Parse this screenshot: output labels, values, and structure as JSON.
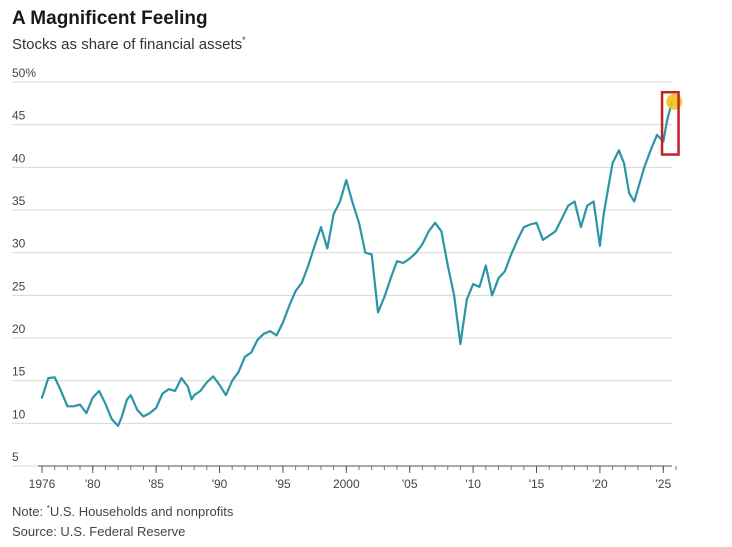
{
  "header": {
    "title": "A Magnificent Feeling",
    "subtitle": "Stocks as share of financial assets",
    "subtitle_marker": "*"
  },
  "footer": {
    "note_prefix": "Note: ",
    "note_marker": "*",
    "note_text": "U.S. Households and nonprofits",
    "source": "Source: U.S. Federal Reserve"
  },
  "colors": {
    "line": "#2a95a6",
    "grid": "#d8d8d8",
    "highlight_box": "#c0242b",
    "highlight_dot": "#f2c21b"
  },
  "chart_data": {
    "type": "line",
    "title": "A Magnificent Feeling",
    "subtitle": "Stocks as share of financial assets",
    "xlabel": "",
    "ylabel": "",
    "xlim": [
      1976,
      2026
    ],
    "ylim": [
      5,
      50
    ],
    "grid": true,
    "y_ticks": [
      {
        "value": 50,
        "label": "50%"
      },
      {
        "value": 45,
        "label": "45"
      },
      {
        "value": 40,
        "label": "40"
      },
      {
        "value": 35,
        "label": "35"
      },
      {
        "value": 30,
        "label": "30"
      },
      {
        "value": 25,
        "label": "25"
      },
      {
        "value": 20,
        "label": "20"
      },
      {
        "value": 15,
        "label": "15"
      },
      {
        "value": 10,
        "label": "10"
      },
      {
        "value": 5,
        "label": "5"
      }
    ],
    "x_ticks": [
      {
        "value": 1976,
        "label": "1976"
      },
      {
        "value": 1980,
        "label": "'80"
      },
      {
        "value": 1985,
        "label": "'85"
      },
      {
        "value": 1990,
        "label": "'90"
      },
      {
        "value": 1995,
        "label": "'95"
      },
      {
        "value": 2000,
        "label": "2000"
      },
      {
        "value": 2005,
        "label": "'05"
      },
      {
        "value": 2010,
        "label": "'10"
      },
      {
        "value": 2015,
        "label": "'15"
      },
      {
        "value": 2020,
        "label": "'20"
      },
      {
        "value": 2025,
        "label": "'25"
      }
    ],
    "highlight": {
      "x_range": [
        2024.9,
        2026.2
      ],
      "y_range": [
        41.5,
        48.8
      ],
      "point": [
        2025.7,
        47.8
      ]
    },
    "series": [
      {
        "name": "Stocks as share of financial assets",
        "x": [
          1976.0,
          1976.5,
          1977.0,
          1977.5,
          1978.0,
          1978.5,
          1979.0,
          1979.5,
          1980.0,
          1980.5,
          1981.0,
          1981.5,
          1982.0,
          1982.3,
          1982.7,
          1983.0,
          1983.5,
          1984.0,
          1984.5,
          1985.0,
          1985.5,
          1986.0,
          1986.5,
          1987.0,
          1987.5,
          1987.8,
          1988.0,
          1988.5,
          1989.0,
          1989.5,
          1990.0,
          1990.5,
          1991.0,
          1991.5,
          1992.0,
          1992.5,
          1993.0,
          1993.5,
          1994.0,
          1994.5,
          1995.0,
          1995.5,
          1996.0,
          1996.5,
          1997.0,
          1997.5,
          1998.0,
          1998.5,
          1999.0,
          1999.5,
          2000.0,
          2000.5,
          2001.0,
          2001.5,
          2002.0,
          2002.5,
          2003.0,
          2003.5,
          2004.0,
          2004.5,
          2005.0,
          2005.5,
          2006.0,
          2006.5,
          2007.0,
          2007.5,
          2008.0,
          2008.5,
          2009.0,
          2009.5,
          2010.0,
          2010.5,
          2011.0,
          2011.5,
          2012.0,
          2012.5,
          2013.0,
          2013.5,
          2014.0,
          2014.5,
          2015.0,
          2015.5,
          2016.0,
          2016.5,
          2017.0,
          2017.5,
          2018.0,
          2018.5,
          2019.0,
          2019.5,
          2020.0,
          2020.3,
          2020.7,
          2021.0,
          2021.5,
          2021.9,
          2022.3,
          2022.7,
          2023.0,
          2023.5,
          2024.0,
          2024.5,
          2025.0,
          2025.3,
          2025.7
        ],
        "values": [
          13.0,
          15.3,
          15.4,
          13.8,
          12.0,
          12.0,
          12.2,
          11.2,
          13.0,
          13.8,
          12.3,
          10.5,
          9.7,
          10.8,
          12.8,
          13.3,
          11.6,
          10.8,
          11.2,
          11.8,
          13.5,
          14.0,
          13.8,
          15.3,
          14.3,
          12.8,
          13.3,
          13.8,
          14.8,
          15.5,
          14.5,
          13.3,
          15.0,
          16.0,
          17.8,
          18.3,
          19.8,
          20.5,
          20.8,
          20.3,
          21.8,
          23.8,
          25.5,
          26.5,
          28.5,
          30.8,
          33.0,
          30.5,
          34.5,
          36.0,
          38.5,
          35.8,
          33.5,
          30.0,
          29.8,
          23.0,
          24.8,
          27.0,
          29.0,
          28.8,
          29.3,
          30.0,
          31.0,
          32.5,
          33.5,
          32.5,
          28.5,
          25.0,
          19.3,
          24.5,
          26.3,
          26.0,
          28.5,
          25.0,
          27.0,
          27.8,
          29.8,
          31.5,
          33.0,
          33.3,
          33.5,
          31.5,
          32.0,
          32.5,
          34.0,
          35.5,
          36.0,
          33.0,
          35.5,
          36.0,
          30.8,
          34.5,
          38.0,
          40.5,
          42.0,
          40.5,
          37.0,
          36.0,
          37.5,
          40.0,
          42.0,
          43.8,
          43.0,
          45.5,
          47.8
        ]
      }
    ]
  }
}
